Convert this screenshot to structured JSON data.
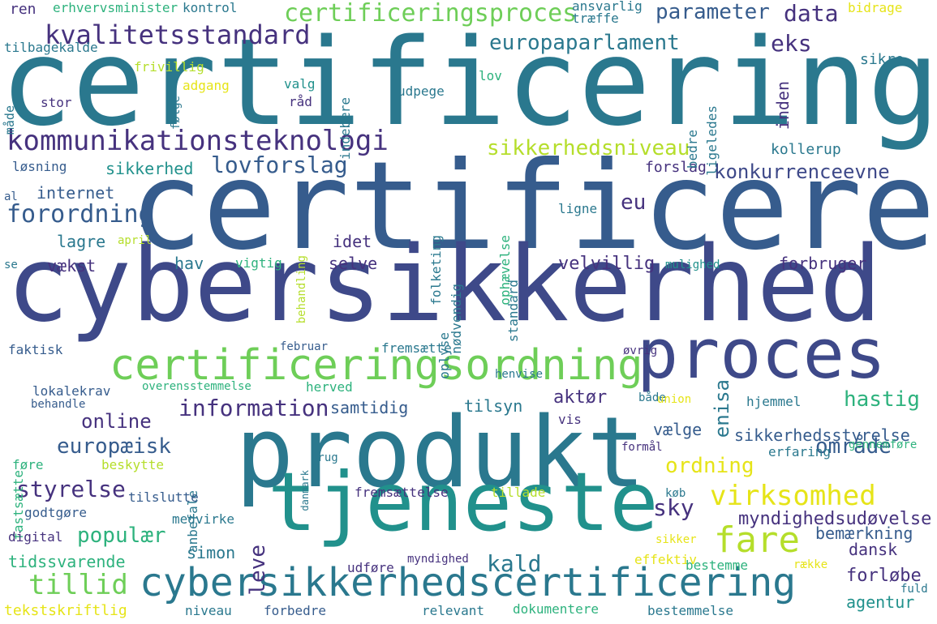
{
  "palette": {
    "dark_purple": "#46327e",
    "indigo": "#3e4989",
    "blue": "#365c8d",
    "steel": "#2a788e",
    "teal": "#21918c",
    "green": "#2db27d",
    "lime": "#6ece58",
    "yellow_green": "#b5de2b",
    "yellow": "#e6e418",
    "deep_purple": "#440154"
  },
  "words": [
    {
      "text": "certificering",
      "color": "#2a788e"
    },
    {
      "text": "certificere",
      "color": "#365c8d"
    },
    {
      "text": "cybersikkerhed",
      "color": "#3e4989"
    },
    {
      "text": "produkt",
      "color": "#2a788e"
    },
    {
      "text": "tjeneste",
      "color": "#21918c"
    },
    {
      "text": "proces",
      "color": "#3e4989"
    },
    {
      "text": "certificeringsordning",
      "color": "#6ece58"
    },
    {
      "text": "cybersikkerhedscertificering",
      "color": "#2a788e"
    },
    {
      "text": "kommunikationsteknologi",
      "color": "#46327e"
    },
    {
      "text": "certificeringsproces",
      "color": "#6ece58"
    },
    {
      "text": "kvalitetsstandard",
      "color": "#46327e"
    },
    {
      "text": "europaparlament",
      "color": "#2a788e"
    },
    {
      "text": "parameter",
      "color": "#365c8d"
    },
    {
      "text": "data",
      "color": "#46327e"
    },
    {
      "text": "eks",
      "color": "#46327e"
    },
    {
      "text": "sikkerhedsniveau",
      "color": "#b5de2b"
    },
    {
      "text": "lovforslag",
      "color": "#365c8d"
    },
    {
      "text": "sikkerhed",
      "color": "#21918c"
    },
    {
      "text": "konkurrenceevne",
      "color": "#3e4989"
    },
    {
      "text": "forordning",
      "color": "#365c8d"
    },
    {
      "text": "eu",
      "color": "#46327e"
    },
    {
      "text": "virksomhed",
      "color": "#e6e418"
    },
    {
      "text": "fare",
      "color": "#b5de2b"
    },
    {
      "text": "information",
      "color": "#46327e"
    },
    {
      "text": "online",
      "color": "#46327e"
    },
    {
      "text": "europæisk",
      "color": "#365c8d"
    },
    {
      "text": "styrelse",
      "color": "#46327e"
    },
    {
      "text": "populær",
      "color": "#2db27d"
    },
    {
      "text": "tillid",
      "color": "#6ece58"
    },
    {
      "text": "hastig",
      "color": "#2db27d"
    },
    {
      "text": "enisa",
      "color": "#2a788e"
    },
    {
      "text": "ordning",
      "color": "#e6e418"
    },
    {
      "text": "område",
      "color": "#365c8d"
    },
    {
      "text": "kald",
      "color": "#2a788e"
    },
    {
      "text": "sky",
      "color": "#46327e"
    },
    {
      "text": "leve",
      "color": "#46327e"
    },
    {
      "text": "simon",
      "color": "#2a788e"
    },
    {
      "text": "myndighedsudøvelse",
      "color": "#46327e"
    },
    {
      "text": "bemærkning",
      "color": "#365c8d"
    },
    {
      "text": "dansk",
      "color": "#46327e"
    },
    {
      "text": "forløbe",
      "color": "#46327e"
    },
    {
      "text": "agentur",
      "color": "#21918c"
    },
    {
      "text": "tidssvarende",
      "color": "#2db27d"
    },
    {
      "text": "sikkerhedsstyrelse",
      "color": "#365c8d"
    },
    {
      "text": "vælge",
      "color": "#365c8d"
    },
    {
      "text": "aktør",
      "color": "#46327e"
    },
    {
      "text": "tilsyn",
      "color": "#2a788e"
    },
    {
      "text": "samtidig",
      "color": "#365c8d"
    },
    {
      "text": "vækst",
      "color": "#46327e"
    },
    {
      "text": "hav",
      "color": "#2a788e"
    },
    {
      "text": "selve",
      "color": "#46327e"
    },
    {
      "text": "velvillig",
      "color": "#46327e"
    },
    {
      "text": "forbruger",
      "color": "#46327e"
    },
    {
      "text": "idet",
      "color": "#46327e"
    },
    {
      "text": "lagre",
      "color": "#2a788e"
    },
    {
      "text": "internet",
      "color": "#365c8d"
    },
    {
      "text": "kollerup",
      "color": "#2a788e"
    },
    {
      "text": "forslag",
      "color": "#46327e"
    },
    {
      "text": "ren",
      "color": "#46327e"
    },
    {
      "text": "erhvervsminister",
      "color": "#2db27d"
    },
    {
      "text": "kontrol",
      "color": "#2a788e"
    },
    {
      "text": "ansvarlig",
      "color": "#2a788e"
    },
    {
      "text": "træffe",
      "color": "#2a788e"
    },
    {
      "text": "bidrage",
      "color": "#e6e418"
    },
    {
      "text": "tilbagekalde",
      "color": "#2a788e"
    },
    {
      "text": "frivillig",
      "color": "#b5de2b"
    },
    {
      "text": "sikre",
      "color": "#2a788e"
    },
    {
      "text": "inden",
      "color": "#46327e"
    },
    {
      "text": "indebære",
      "color": "#2a788e"
    },
    {
      "text": "ligeledes",
      "color": "#2a788e"
    },
    {
      "text": "adgang",
      "color": "#e6e418"
    },
    {
      "text": "følge",
      "color": "#2a788e"
    },
    {
      "text": "valg",
      "color": "#21918c"
    },
    {
      "text": "lov",
      "color": "#2db27d"
    },
    {
      "text": "råd",
      "color": "#46327e"
    },
    {
      "text": "udpege",
      "color": "#2a788e"
    },
    {
      "text": "stor",
      "color": "#46327e"
    },
    {
      "text": "måde",
      "color": "#2a788e"
    },
    {
      "text": "bedre",
      "color": "#2a788e"
    },
    {
      "text": "løsning",
      "color": "#365c8d"
    },
    {
      "text": "al",
      "color": "#365c8d"
    },
    {
      "text": "april",
      "color": "#b5de2b"
    },
    {
      "text": "behandling",
      "color": "#b5de2b"
    },
    {
      "text": "vigtig",
      "color": "#2db27d"
    },
    {
      "text": "ligne",
      "color": "#2a788e"
    },
    {
      "text": "folketing",
      "color": "#2a788e"
    },
    {
      "text": "ophævelse",
      "color": "#2db27d"
    },
    {
      "text": "standard",
      "color": "#2a788e"
    },
    {
      "text": "nødvendig",
      "color": "#2a788e"
    },
    {
      "text": "oplyse",
      "color": "#2a788e"
    },
    {
      "text": "mulighed",
      "color": "#21918c"
    },
    {
      "text": "se",
      "color": "#2a788e"
    },
    {
      "text": "faktisk",
      "color": "#365c8d"
    },
    {
      "text": "februar",
      "color": "#365c8d"
    },
    {
      "text": "fremsætte",
      "color": "#2a788e"
    },
    {
      "text": "øvrig",
      "color": "#46327e"
    },
    {
      "text": "henvise",
      "color": "#2a788e"
    },
    {
      "text": "overensstemmelse",
      "color": "#2db27d"
    },
    {
      "text": "herved",
      "color": "#2db27d"
    },
    {
      "text": "lokalekrav",
      "color": "#365c8d"
    },
    {
      "text": "behandle",
      "color": "#365c8d"
    },
    {
      "text": "både",
      "color": "#2a788e"
    },
    {
      "text": "union",
      "color": "#e6e418"
    },
    {
      "text": "hjemmel",
      "color": "#2a788e"
    },
    {
      "text": "fastsætte",
      "color": "#2db27d"
    },
    {
      "text": "vis",
      "color": "#46327e"
    },
    {
      "text": "anbefale",
      "color": "#2a788e"
    },
    {
      "text": "danmark",
      "color": "#2a788e"
    },
    {
      "text": "formål",
      "color": "#46327e"
    },
    {
      "text": "erfaring",
      "color": "#2a788e"
    },
    {
      "text": "gennemføre",
      "color": "#2db27d"
    },
    {
      "text": "brug",
      "color": "#2a788e"
    },
    {
      "text": "beskytte",
      "color": "#b5de2b"
    },
    {
      "text": "føre",
      "color": "#2db27d"
    },
    {
      "text": "tilslutte",
      "color": "#365c8d"
    },
    {
      "text": "fremsættelse",
      "color": "#46327e"
    },
    {
      "text": "tillade",
      "color": "#b5de2b"
    },
    {
      "text": "køb",
      "color": "#2a788e"
    },
    {
      "text": "godtgøre",
      "color": "#365c8d"
    },
    {
      "text": "medvirke",
      "color": "#2a788e"
    },
    {
      "text": "digital",
      "color": "#46327e"
    },
    {
      "text": "udføre",
      "color": "#46327e"
    },
    {
      "text": "myndighed",
      "color": "#46327e"
    },
    {
      "text": "sikker",
      "color": "#e6e418"
    },
    {
      "text": "effektiv",
      "color": "#e6e418"
    },
    {
      "text": "bestemme",
      "color": "#2db27d"
    },
    {
      "text": "række",
      "color": "#e6e418"
    },
    {
      "text": "fuld",
      "color": "#2a788e"
    },
    {
      "text": "tekstskriftlig",
      "color": "#e6e418"
    },
    {
      "text": "niveau",
      "color": "#2a788e"
    },
    {
      "text": "forbedre",
      "color": "#365c8d"
    },
    {
      "text": "relevant",
      "color": "#2a788e"
    },
    {
      "text": "dokumentere",
      "color": "#2db27d"
    },
    {
      "text": "bestemmelse",
      "color": "#2a788e"
    }
  ]
}
